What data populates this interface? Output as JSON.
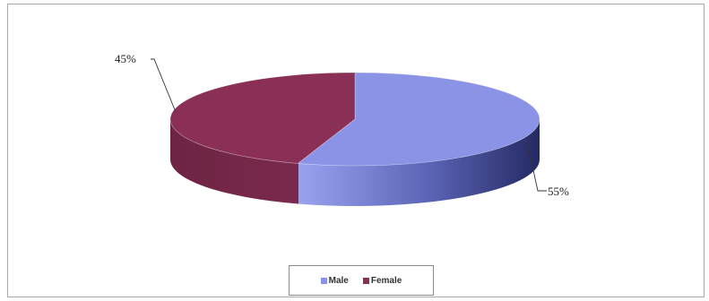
{
  "chart_data": {
    "type": "pie",
    "categories": [
      "Male",
      "Female"
    ],
    "values": [
      55,
      45
    ],
    "data_labels": [
      "55%",
      "45%"
    ],
    "colors": [
      "#8a93e6",
      "#8a2f55"
    ],
    "style": "3d-tilted",
    "legend": {
      "placement": "bottom",
      "entries": [
        "Male",
        "Female"
      ]
    }
  }
}
